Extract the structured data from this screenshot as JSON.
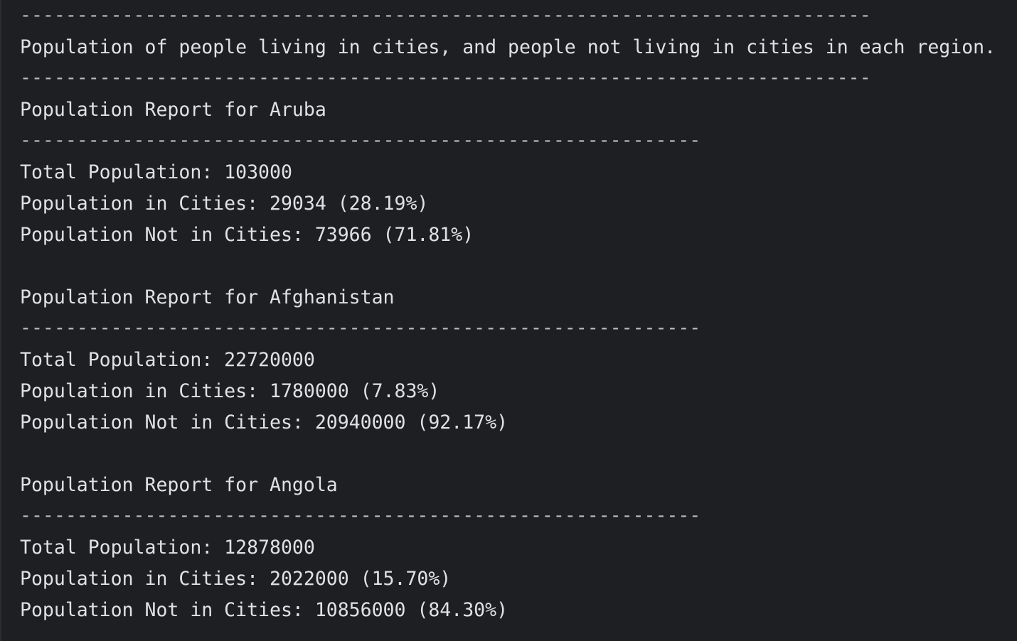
{
  "header": {
    "separator_long": "---------------------------------------------------------------------------",
    "title": "Population of people living in cities, and people not living in cities in each region."
  },
  "reports": [
    {
      "heading": "Population Report for Aruba",
      "separator": "------------------------------------------------------------",
      "total": "Total Population: 103000",
      "in_cities": "Population in Cities: 29034 (28.19%)",
      "not_in_cities": "Population Not in Cities: 73966 (71.81%)"
    },
    {
      "heading": "Population Report for Afghanistan",
      "separator": "------------------------------------------------------------",
      "total": "Total Population: 22720000",
      "in_cities": "Population in Cities: 1780000 (7.83%)",
      "not_in_cities": "Population Not in Cities: 20940000 (92.17%)"
    },
    {
      "heading": "Population Report for Angola",
      "separator": "------------------------------------------------------------",
      "total": "Total Population: 12878000",
      "in_cities": "Population in Cities: 2022000 (15.70%)",
      "not_in_cities": "Population Not in Cities: 10856000 (84.30%)"
    }
  ]
}
